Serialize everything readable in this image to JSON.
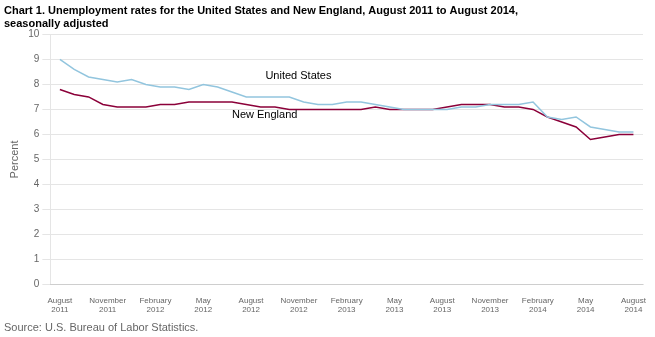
{
  "chart_data": {
    "type": "line",
    "title": [
      "Chart 1. Unemployment rates for the United States and New England, August 2011 to August 2014,",
      "seasonally adjusted"
    ],
    "ylabel": "Percent",
    "source": "Source: U.S. Bureau of Labor Statistics.",
    "x": [
      0,
      0.3,
      0.6,
      0.9,
      1.2,
      1.5,
      1.8,
      2.1,
      2.4,
      2.7,
      3,
      3.3,
      3.6,
      3.9,
      4.2,
      4.5,
      4.8,
      5.1,
      5.4,
      5.7,
      6,
      6.3,
      6.6,
      6.9,
      7.2,
      7.5,
      7.8,
      8.1,
      8.4,
      8.7,
      9,
      9.3,
      9.6,
      9.9,
      10.2,
      10.5,
      10.8,
      11.1,
      11.4,
      11.7,
      12
    ],
    "series": [
      {
        "name": "United States",
        "color": "#92c5de",
        "values": [
          9.0,
          8.6,
          8.3,
          8.2,
          8.1,
          8.2,
          8.0,
          7.9,
          7.9,
          7.8,
          8.0,
          7.9,
          7.7,
          7.5,
          7.5,
          7.5,
          7.5,
          7.3,
          7.2,
          7.2,
          7.3,
          7.3,
          7.2,
          7.1,
          7.0,
          7.0,
          7.0,
          7.0,
          7.1,
          7.1,
          7.2,
          7.2,
          7.2,
          7.3,
          6.7,
          6.6,
          6.7,
          6.3,
          6.2,
          6.1,
          6.1
        ]
      },
      {
        "name": "New England",
        "color": "#8b0039",
        "values": [
          7.8,
          7.6,
          7.5,
          7.2,
          7.1,
          7.1,
          7.1,
          7.2,
          7.2,
          7.3,
          7.3,
          7.3,
          7.3,
          7.2,
          7.1,
          7.1,
          7.0,
          7.0,
          7.0,
          7.0,
          7.0,
          7.0,
          7.1,
          7.0,
          7.0,
          7.0,
          7.0,
          7.1,
          7.2,
          7.2,
          7.2,
          7.1,
          7.1,
          7.0,
          6.7,
          6.5,
          6.3,
          5.8,
          5.9,
          6.0,
          6.0
        ]
      }
    ],
    "xlim": [
      -0.2,
      12.2
    ],
    "xticks": [
      {
        "value": 0,
        "label": "August\n2011"
      },
      {
        "value": 1,
        "label": "November\n2011"
      },
      {
        "value": 2,
        "label": "February\n2012"
      },
      {
        "value": 3,
        "label": "May\n2012"
      },
      {
        "value": 4,
        "label": "August\n2012"
      },
      {
        "value": 5,
        "label": "November\n2012"
      },
      {
        "value": 6,
        "label": "February\n2013"
      },
      {
        "value": 7,
        "label": "May\n2013"
      },
      {
        "value": 8,
        "label": "August\n2013"
      },
      {
        "value": 9,
        "label": "November\n2013"
      },
      {
        "value": 10,
        "label": "February\n2014"
      },
      {
        "value": 11,
        "label": "May\n2014"
      },
      {
        "value": 12,
        "label": "August\n2014"
      }
    ],
    "ylim": [
      0,
      10
    ],
    "yticks": [
      0,
      1,
      2,
      3,
      4,
      5,
      6,
      7,
      8,
      9,
      10
    ],
    "grid": true,
    "annotations": [
      {
        "text": "United States",
        "x": 4.3,
        "y": 8.1
      },
      {
        "text": "New England",
        "x": 3.6,
        "y": 6.55
      }
    ]
  }
}
